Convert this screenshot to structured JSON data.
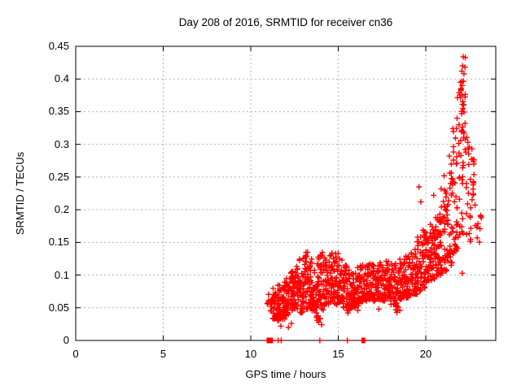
{
  "title": "Day 208 of 2016, SRMTID for receiver cn36",
  "colors": {
    "marker": "#ff0000",
    "grid": "#b4b4b4",
    "border": "#000000",
    "text": "#000000",
    "background": "#ffffff"
  },
  "chart_data": {
    "type": "scatter",
    "title": "Day 208 of 2016, SRMTID for receiver cn36",
    "xlabel": "GPS time / hours",
    "ylabel": "SRMTID / TECUs",
    "xlim": [
      0,
      24
    ],
    "ylim": [
      0,
      0.45
    ],
    "xticks": [
      0,
      5,
      10,
      15,
      20
    ],
    "xtick_labels": [
      "0",
      "5",
      "10",
      "15",
      "20"
    ],
    "yticks": [
      0,
      0.05,
      0.1,
      0.15,
      0.2,
      0.25,
      0.3,
      0.35,
      0.4,
      0.45
    ],
    "ytick_labels": [
      "0",
      "0.05",
      "0.1",
      "0.15",
      "0.2",
      "0.25",
      "0.3",
      "0.35",
      "0.4",
      "0.45"
    ],
    "grid": true,
    "legend": "none",
    "marker": "plus",
    "marker_size": 7,
    "data_x_extent": [
      10.94,
      23.2
    ],
    "data_y_max": 0.435,
    "seed": 42,
    "bins": [
      [
        10.94,
        11.25,
        12,
        0.045,
        0.075,
        1.3
      ],
      [
        11.25,
        11.5,
        26,
        0.033,
        0.08,
        1.4
      ],
      [
        11.5,
        11.75,
        34,
        0.03,
        0.085,
        1.4
      ],
      [
        11.75,
        12.0,
        34,
        0.032,
        0.09,
        1.4
      ],
      [
        12.0,
        12.25,
        34,
        0.038,
        0.1,
        1.5
      ],
      [
        12.25,
        12.5,
        34,
        0.045,
        0.108,
        1.5
      ],
      [
        12.5,
        12.75,
        34,
        0.048,
        0.118,
        1.5
      ],
      [
        12.75,
        13.0,
        32,
        0.042,
        0.125,
        1.5
      ],
      [
        13.0,
        13.25,
        34,
        0.048,
        0.138,
        1.6
      ],
      [
        13.25,
        13.5,
        34,
        0.05,
        0.132,
        1.6
      ],
      [
        13.5,
        13.75,
        32,
        0.042,
        0.12,
        1.5
      ],
      [
        13.75,
        14.0,
        32,
        0.03,
        0.128,
        1.4
      ],
      [
        14.0,
        14.25,
        32,
        0.045,
        0.135,
        1.5
      ],
      [
        14.25,
        14.5,
        30,
        0.055,
        0.125,
        1.4
      ],
      [
        14.5,
        14.75,
        30,
        0.058,
        0.135,
        1.4
      ],
      [
        14.75,
        15.0,
        30,
        0.055,
        0.138,
        1.5
      ],
      [
        15.0,
        15.25,
        30,
        0.058,
        0.125,
        1.5
      ],
      [
        15.25,
        15.5,
        30,
        0.05,
        0.115,
        1.4
      ],
      [
        15.5,
        15.75,
        30,
        0.045,
        0.11,
        1.4
      ],
      [
        15.75,
        16.0,
        30,
        0.05,
        0.108,
        1.4
      ],
      [
        16.0,
        16.25,
        30,
        0.052,
        0.112,
        1.4
      ],
      [
        16.25,
        16.5,
        28,
        0.058,
        0.115,
        1.4
      ],
      [
        16.5,
        16.75,
        28,
        0.06,
        0.118,
        1.4
      ],
      [
        16.75,
        17.0,
        28,
        0.062,
        0.12,
        1.4
      ],
      [
        17.0,
        17.25,
        28,
        0.058,
        0.115,
        1.4
      ],
      [
        17.25,
        17.5,
        28,
        0.062,
        0.12,
        1.4
      ],
      [
        17.5,
        17.75,
        28,
        0.06,
        0.122,
        1.4
      ],
      [
        17.75,
        18.0,
        28,
        0.063,
        0.125,
        1.4
      ],
      [
        18.0,
        18.25,
        28,
        0.055,
        0.12,
        1.4
      ],
      [
        18.25,
        18.5,
        28,
        0.045,
        0.12,
        1.3
      ],
      [
        18.5,
        18.75,
        28,
        0.06,
        0.126,
        1.4
      ],
      [
        18.75,
        19.0,
        28,
        0.065,
        0.13,
        1.4
      ],
      [
        19.0,
        19.25,
        30,
        0.068,
        0.135,
        1.4
      ],
      [
        19.25,
        19.5,
        30,
        0.07,
        0.142,
        1.4
      ],
      [
        19.5,
        19.75,
        30,
        0.075,
        0.16,
        1.4
      ],
      [
        19.75,
        20.0,
        30,
        0.08,
        0.17,
        1.4
      ],
      [
        20.0,
        20.25,
        32,
        0.088,
        0.17,
        1.3
      ],
      [
        20.25,
        20.5,
        32,
        0.092,
        0.18,
        1.3
      ],
      [
        20.5,
        20.75,
        32,
        0.098,
        0.19,
        1.3
      ],
      [
        20.75,
        21.0,
        32,
        0.1,
        0.205,
        1.3
      ],
      [
        21.0,
        21.25,
        28,
        0.105,
        0.245,
        1.4
      ],
      [
        21.25,
        21.5,
        28,
        0.115,
        0.285,
        1.4
      ],
      [
        21.5,
        21.75,
        28,
        0.125,
        0.33,
        1.3
      ],
      [
        21.75,
        22.0,
        26,
        0.14,
        0.38,
        1.2
      ],
      [
        21.92,
        22.12,
        8,
        0.345,
        0.4,
        1.0
      ],
      [
        22.0,
        22.15,
        16,
        0.098,
        0.36,
        0.9
      ],
      [
        22.1,
        22.35,
        16,
        0.24,
        0.4,
        1.0
      ],
      [
        22.3,
        22.6,
        18,
        0.15,
        0.31,
        1.0
      ],
      [
        22.55,
        22.8,
        14,
        0.185,
        0.3,
        1.0
      ],
      [
        22.75,
        23.2,
        10,
        0.15,
        0.21,
        1.0
      ]
    ],
    "outliers": [
      [
        11.72,
        0.022
      ],
      [
        12.15,
        0.02
      ],
      [
        12.32,
        0.026
      ],
      [
        13.88,
        0.028
      ],
      [
        14.05,
        0.024
      ],
      [
        15.55,
        0.042
      ],
      [
        16.12,
        0.046
      ],
      [
        17.32,
        0.048
      ],
      [
        18.35,
        0.043
      ],
      [
        18.52,
        0.046
      ],
      [
        19.62,
        0.235
      ],
      [
        19.72,
        0.212
      ],
      [
        20.45,
        0.222
      ],
      [
        20.88,
        0.232
      ],
      [
        21.05,
        0.252
      ],
      [
        22.14,
        0.434
      ],
      [
        22.26,
        0.433
      ],
      [
        22.1,
        0.42
      ],
      [
        22.24,
        0.418
      ],
      [
        22.06,
        0.412
      ],
      [
        22.18,
        0.408
      ],
      [
        21.98,
        0.395
      ],
      [
        22.08,
        0.39
      ]
    ],
    "zero_marks": [
      10.94,
      10.99,
      11.04,
      11.09,
      11.14,
      11.19,
      11.24,
      11.57,
      11.74,
      13.95,
      15.52,
      16.36,
      16.41,
      16.46,
      16.51
    ]
  }
}
